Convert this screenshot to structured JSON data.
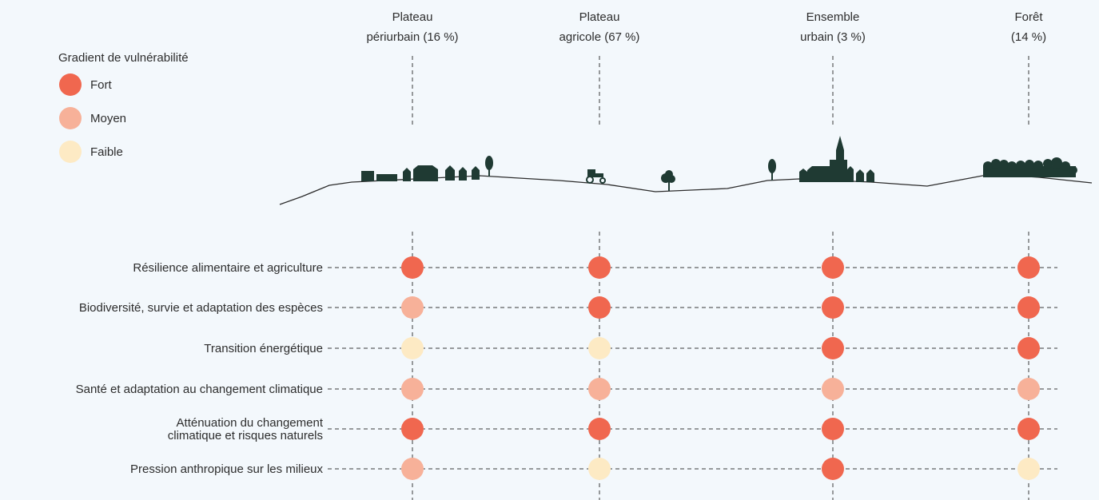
{
  "legend": {
    "title": "Gradient de vulnérabilité",
    "items": [
      {
        "key": "fort",
        "label": "Fort",
        "color": "#f0674f"
      },
      {
        "key": "moyen",
        "label": "Moyen",
        "color": "#f7b199"
      },
      {
        "key": "faible",
        "label": "Faible",
        "color": "#fdeac4"
      }
    ]
  },
  "columns": [
    {
      "id": "periurbain",
      "lines": [
        "Plateau",
        "périurbain (16 %)"
      ]
    },
    {
      "id": "agricole",
      "lines": [
        "Plateau",
        "agricole (67 %)"
      ]
    },
    {
      "id": "urbain",
      "lines": [
        "Ensemble",
        "urbain (3 %)"
      ]
    },
    {
      "id": "foret",
      "lines": [
        "Forêt",
        "(14 %)"
      ]
    }
  ],
  "rows": [
    {
      "lines": [
        "Résilience alimentaire et agriculture"
      ],
      "levels": [
        "fort",
        "fort",
        "fort",
        "fort"
      ]
    },
    {
      "lines": [
        "Biodiversité, survie et adaptation des espèces"
      ],
      "levels": [
        "moyen",
        "fort",
        "fort",
        "fort"
      ]
    },
    {
      "lines": [
        "Transition énergétique"
      ],
      "levels": [
        "faible",
        "faible",
        "fort",
        "fort"
      ]
    },
    {
      "lines": [
        "Santé et adaptation au changement climatique"
      ],
      "levels": [
        "moyen",
        "moyen",
        "moyen",
        "moyen"
      ]
    },
    {
      "lines": [
        "Atténuation du changement",
        "climatique et risques naturels"
      ],
      "levels": [
        "fort",
        "fort",
        "fort",
        "fort"
      ]
    },
    {
      "lines": [
        "Pression anthropique sur les milieux"
      ],
      "levels": [
        "moyen",
        "faible",
        "fort",
        "faible"
      ]
    }
  ],
  "landscape": {
    "line_color": "#2d2d2d",
    "silhouette_color": "#1f3a33"
  }
}
